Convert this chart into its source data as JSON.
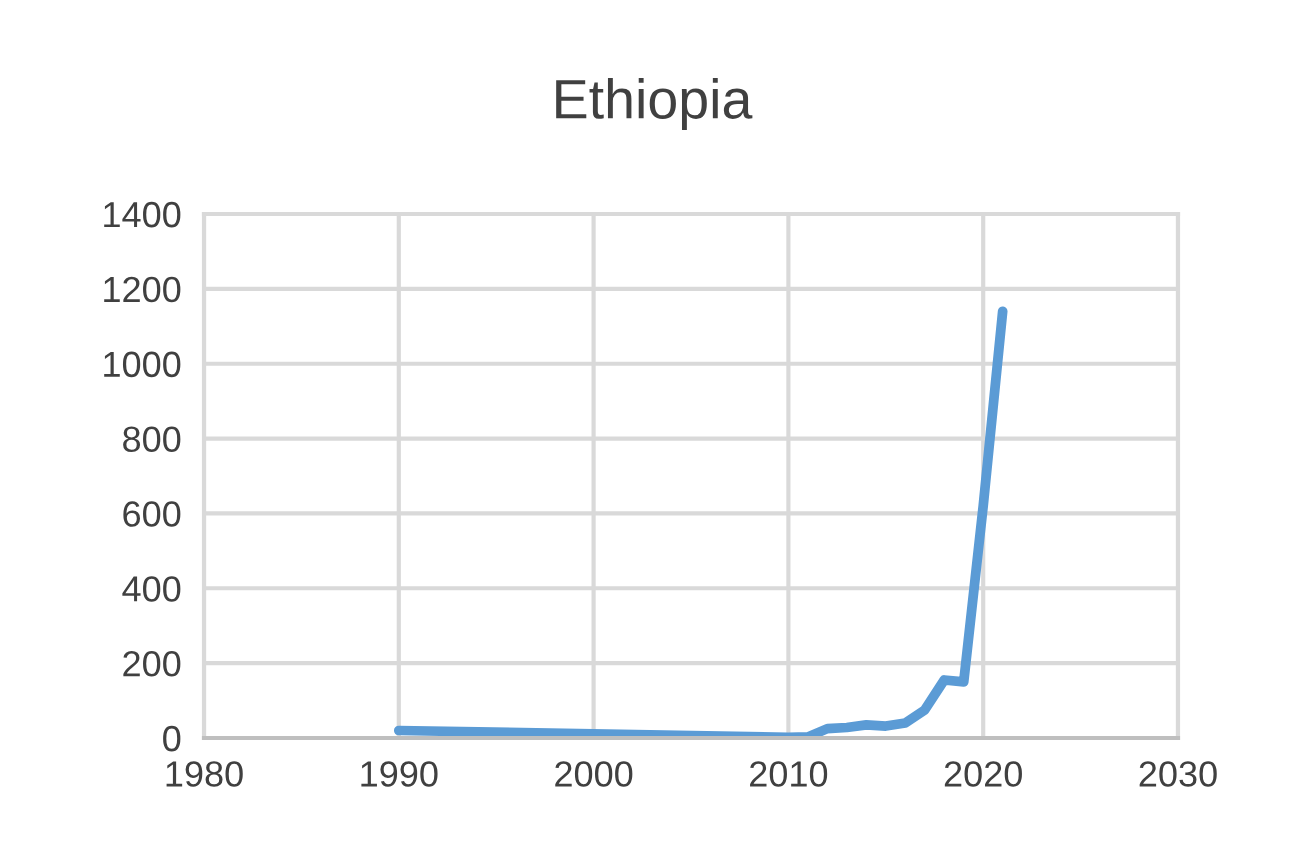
{
  "chart_data": {
    "type": "line",
    "title": "Ethiopia",
    "series": [
      {
        "color": "#5b9bd5",
        "x": [
          1990,
          2010,
          2011,
          2012,
          2013,
          2014,
          2015,
          2016,
          2017,
          2018,
          2019,
          2020,
          2021
        ],
        "values": [
          20,
          2,
          3,
          25,
          28,
          35,
          32,
          40,
          75,
          155,
          150,
          620,
          1140
        ]
      }
    ],
    "xlim": [
      1980,
      2030
    ],
    "xticks": [
      1980,
      1990,
      2000,
      2010,
      2020,
      2030
    ],
    "ylim": [
      0,
      1400
    ],
    "yticks": [
      0,
      200,
      400,
      600,
      800,
      1000,
      1200,
      1400
    ],
    "grid": true,
    "marker": "none",
    "line_style": "solid"
  }
}
